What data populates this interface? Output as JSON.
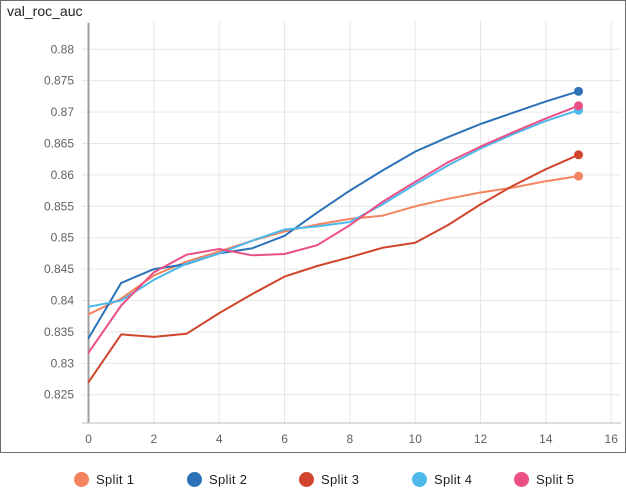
{
  "chart_data": {
    "type": "line",
    "title": "val_roc_auc",
    "xlabel": "",
    "ylabel": "",
    "xlim": [
      -0.2,
      16.3
    ],
    "ylim": [
      0.8205,
      0.8845
    ],
    "x_ticks": [
      0,
      2,
      4,
      6,
      8,
      10,
      12,
      14,
      16
    ],
    "x_tick_labels": [
      "0",
      "2",
      "4",
      "6",
      "8",
      "10",
      "12",
      "14",
      "16"
    ],
    "y_ticks": [
      0.825,
      0.83,
      0.835,
      0.84,
      0.845,
      0.85,
      0.855,
      0.86,
      0.865,
      0.87,
      0.875,
      0.88
    ],
    "y_tick_labels": [
      "0.825",
      "0.83",
      "0.835",
      "0.84",
      "0.845",
      "0.85",
      "0.855",
      "0.86",
      "0.865",
      "0.87",
      "0.875",
      "0.88"
    ],
    "grid": true,
    "legend_position": "bottom",
    "x": [
      0,
      1,
      2,
      3,
      4,
      5,
      6,
      7,
      8,
      9,
      10,
      11,
      12,
      13,
      14,
      15
    ],
    "series": [
      {
        "name": "Split 1",
        "color": "#f4845f",
        "values": [
          0.8378,
          0.8403,
          0.844,
          0.8462,
          0.8478,
          0.8495,
          0.851,
          0.8521,
          0.853,
          0.8535,
          0.855,
          0.8562,
          0.8572,
          0.858,
          0.859,
          0.8598
        ]
      },
      {
        "name": "Split 2",
        "color": "#2b72b8",
        "values": [
          0.834,
          0.8428,
          0.845,
          0.8458,
          0.8475,
          0.8483,
          0.8503,
          0.854,
          0.8575,
          0.8607,
          0.8637,
          0.866,
          0.8681,
          0.8699,
          0.8717,
          0.8733
        ]
      },
      {
        "name": "Split 3",
        "color": "#d1452c",
        "values": [
          0.827,
          0.8346,
          0.8342,
          0.8347,
          0.838,
          0.841,
          0.8438,
          0.8455,
          0.8469,
          0.8484,
          0.8492,
          0.852,
          0.8553,
          0.8583,
          0.8609,
          0.8632
        ]
      },
      {
        "name": "Split 4",
        "color": "#4db8ea",
        "values": [
          0.839,
          0.84,
          0.8433,
          0.8459,
          0.8475,
          0.8495,
          0.8513,
          0.8518,
          0.8525,
          0.8553,
          0.8585,
          0.8615,
          0.8642,
          0.8665,
          0.8686,
          0.8703
        ]
      },
      {
        "name": "Split 5",
        "color": "#ec4f86",
        "values": [
          0.8317,
          0.8392,
          0.8445,
          0.8473,
          0.8482,
          0.8472,
          0.8474,
          0.8488,
          0.852,
          0.8557,
          0.8589,
          0.862,
          0.8645,
          0.8668,
          0.869,
          0.871
        ]
      }
    ]
  }
}
